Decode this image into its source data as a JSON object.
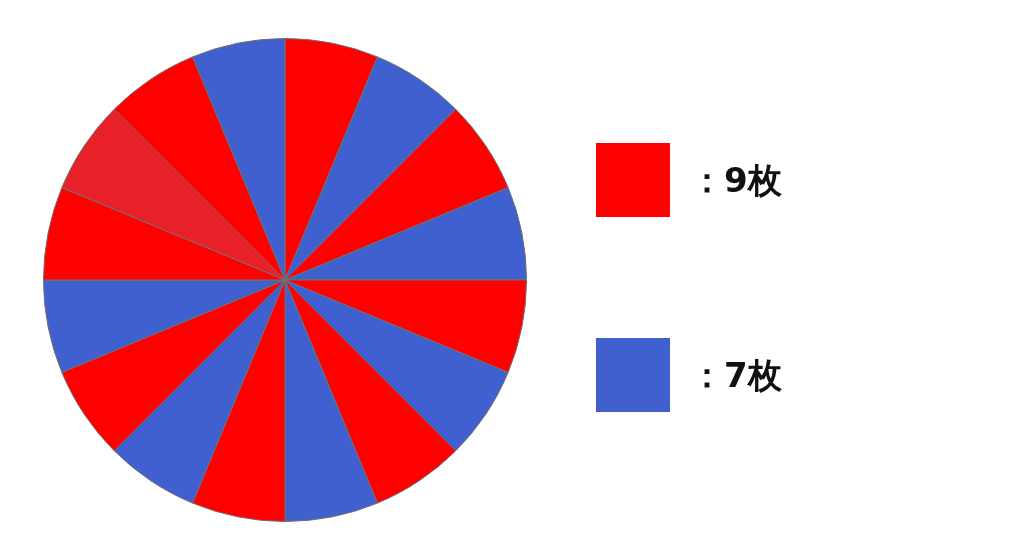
{
  "chart_data": {
    "type": "pie",
    "categories": [
      null,
      null,
      null,
      null,
      null,
      null,
      null,
      null,
      null,
      null,
      null,
      null,
      null,
      null,
      null,
      null
    ],
    "values": [
      6.25,
      6.25,
      6.25,
      6.25,
      6.25,
      6.25,
      6.25,
      6.25,
      6.25,
      6.25,
      6.25,
      6.25,
      6.25,
      6.25,
      6.25,
      6.25
    ],
    "colors": [
      "#ff0000",
      "#4060d0",
      "#ff0000",
      "#4060d0",
      "#ff0000",
      "#4060d0",
      "#ff0000",
      "#4060d0",
      "#ff0000",
      "#4060d0",
      "#ff0000",
      "#4060d0",
      "#ff0000",
      "#e82028",
      "#ff0000",
      "#4060d0"
    ],
    "annotations": [
      "：9枚",
      "：7枚"
    ]
  }
}
